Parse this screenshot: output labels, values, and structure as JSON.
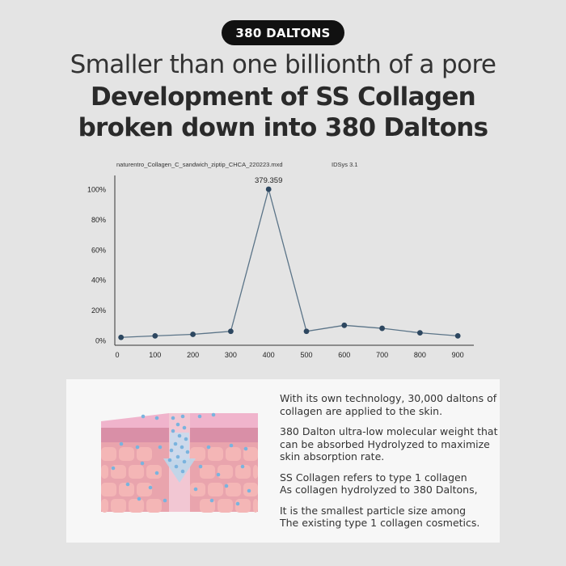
{
  "badge": "380 DALTONS",
  "heading": {
    "line1": "Smaller than one billionth of a pore",
    "line2": "Development of SS Collagen",
    "line3": "broken down into 380 Daltons"
  },
  "chart_data": {
    "type": "line",
    "file_label": "naturentro_Collagen_C_sandwich_ziptip_CHCA_220223.mxd",
    "software_label": "IDSys 3.1",
    "x": [
      10,
      100,
      200,
      300,
      400,
      500,
      600,
      700,
      800,
      900
    ],
    "values": [
      2,
      3,
      4,
      6,
      100,
      6,
      10,
      8,
      5,
      3
    ],
    "x_ticks": [
      "0",
      "100",
      "200",
      "300",
      "400",
      "500",
      "600",
      "700",
      "800",
      "900"
    ],
    "y_ticks": [
      "0%",
      "20%",
      "40%",
      "60%",
      "80%",
      "100%"
    ],
    "xlim": [
      0,
      950
    ],
    "ylim": [
      0,
      100
    ],
    "peak_label": "379.359",
    "peak_index": 4,
    "line_color": "#5b7488",
    "marker_color": "#2d4760"
  },
  "description": {
    "p1": [
      "With its own technology, 30,000 daltons of",
      "collagen are applied to the skin."
    ],
    "p2": [
      "380 Dalton ultra-low molecular weight that",
      "can be absorbed Hydrolyzed to maximize",
      "skin absorption rate."
    ],
    "p3": [
      "SS Collagen refers to type 1 collagen",
      "As collagen hydrolyzed to 380 Daltons,"
    ],
    "p4": [
      "It is the smallest particle size among",
      "The existing type 1 collagen cosmetics."
    ]
  },
  "illustration": {
    "skin_top_color": "#f0b4cc",
    "skin_layer_color": "#e9a4ad",
    "cell_color": "#f4b6b6",
    "arrow_color": "#bcd6ea",
    "particle_color": "#7ab3de"
  }
}
